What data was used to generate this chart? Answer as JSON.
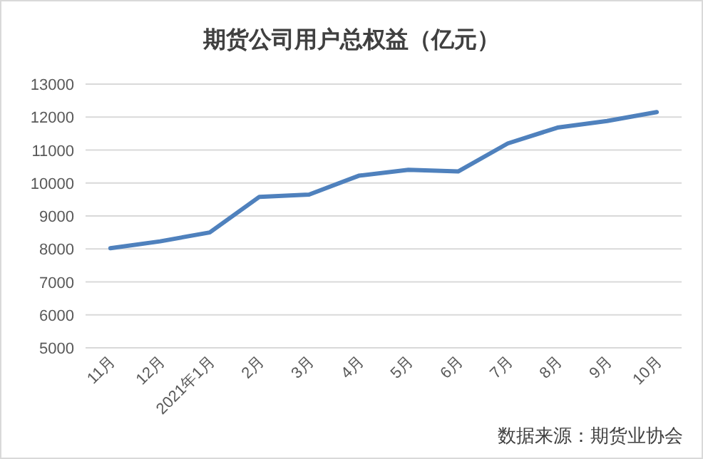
{
  "chart_data": {
    "type": "line",
    "title": "期货公司用户总权益（亿元）",
    "categories": [
      "11月",
      "12月",
      "2021年1月",
      "2月",
      "3月",
      "4月",
      "5月",
      "6月",
      "7月",
      "8月",
      "9月",
      "10月"
    ],
    "series": [
      {
        "color": "#4f81bd",
        "values": [
          8020,
          8230,
          8500,
          9580,
          9650,
          10220,
          10400,
          10350,
          11200,
          11680,
          11880,
          12150
        ]
      }
    ],
    "ylim": [
      5000,
      13000
    ],
    "yticks": [
      5000,
      6000,
      7000,
      8000,
      9000,
      10000,
      11000,
      12000,
      13000
    ],
    "grid": "y",
    "marker": "none",
    "line_style": "solid",
    "annotations": [
      "数据来源：期货业协会"
    ]
  }
}
